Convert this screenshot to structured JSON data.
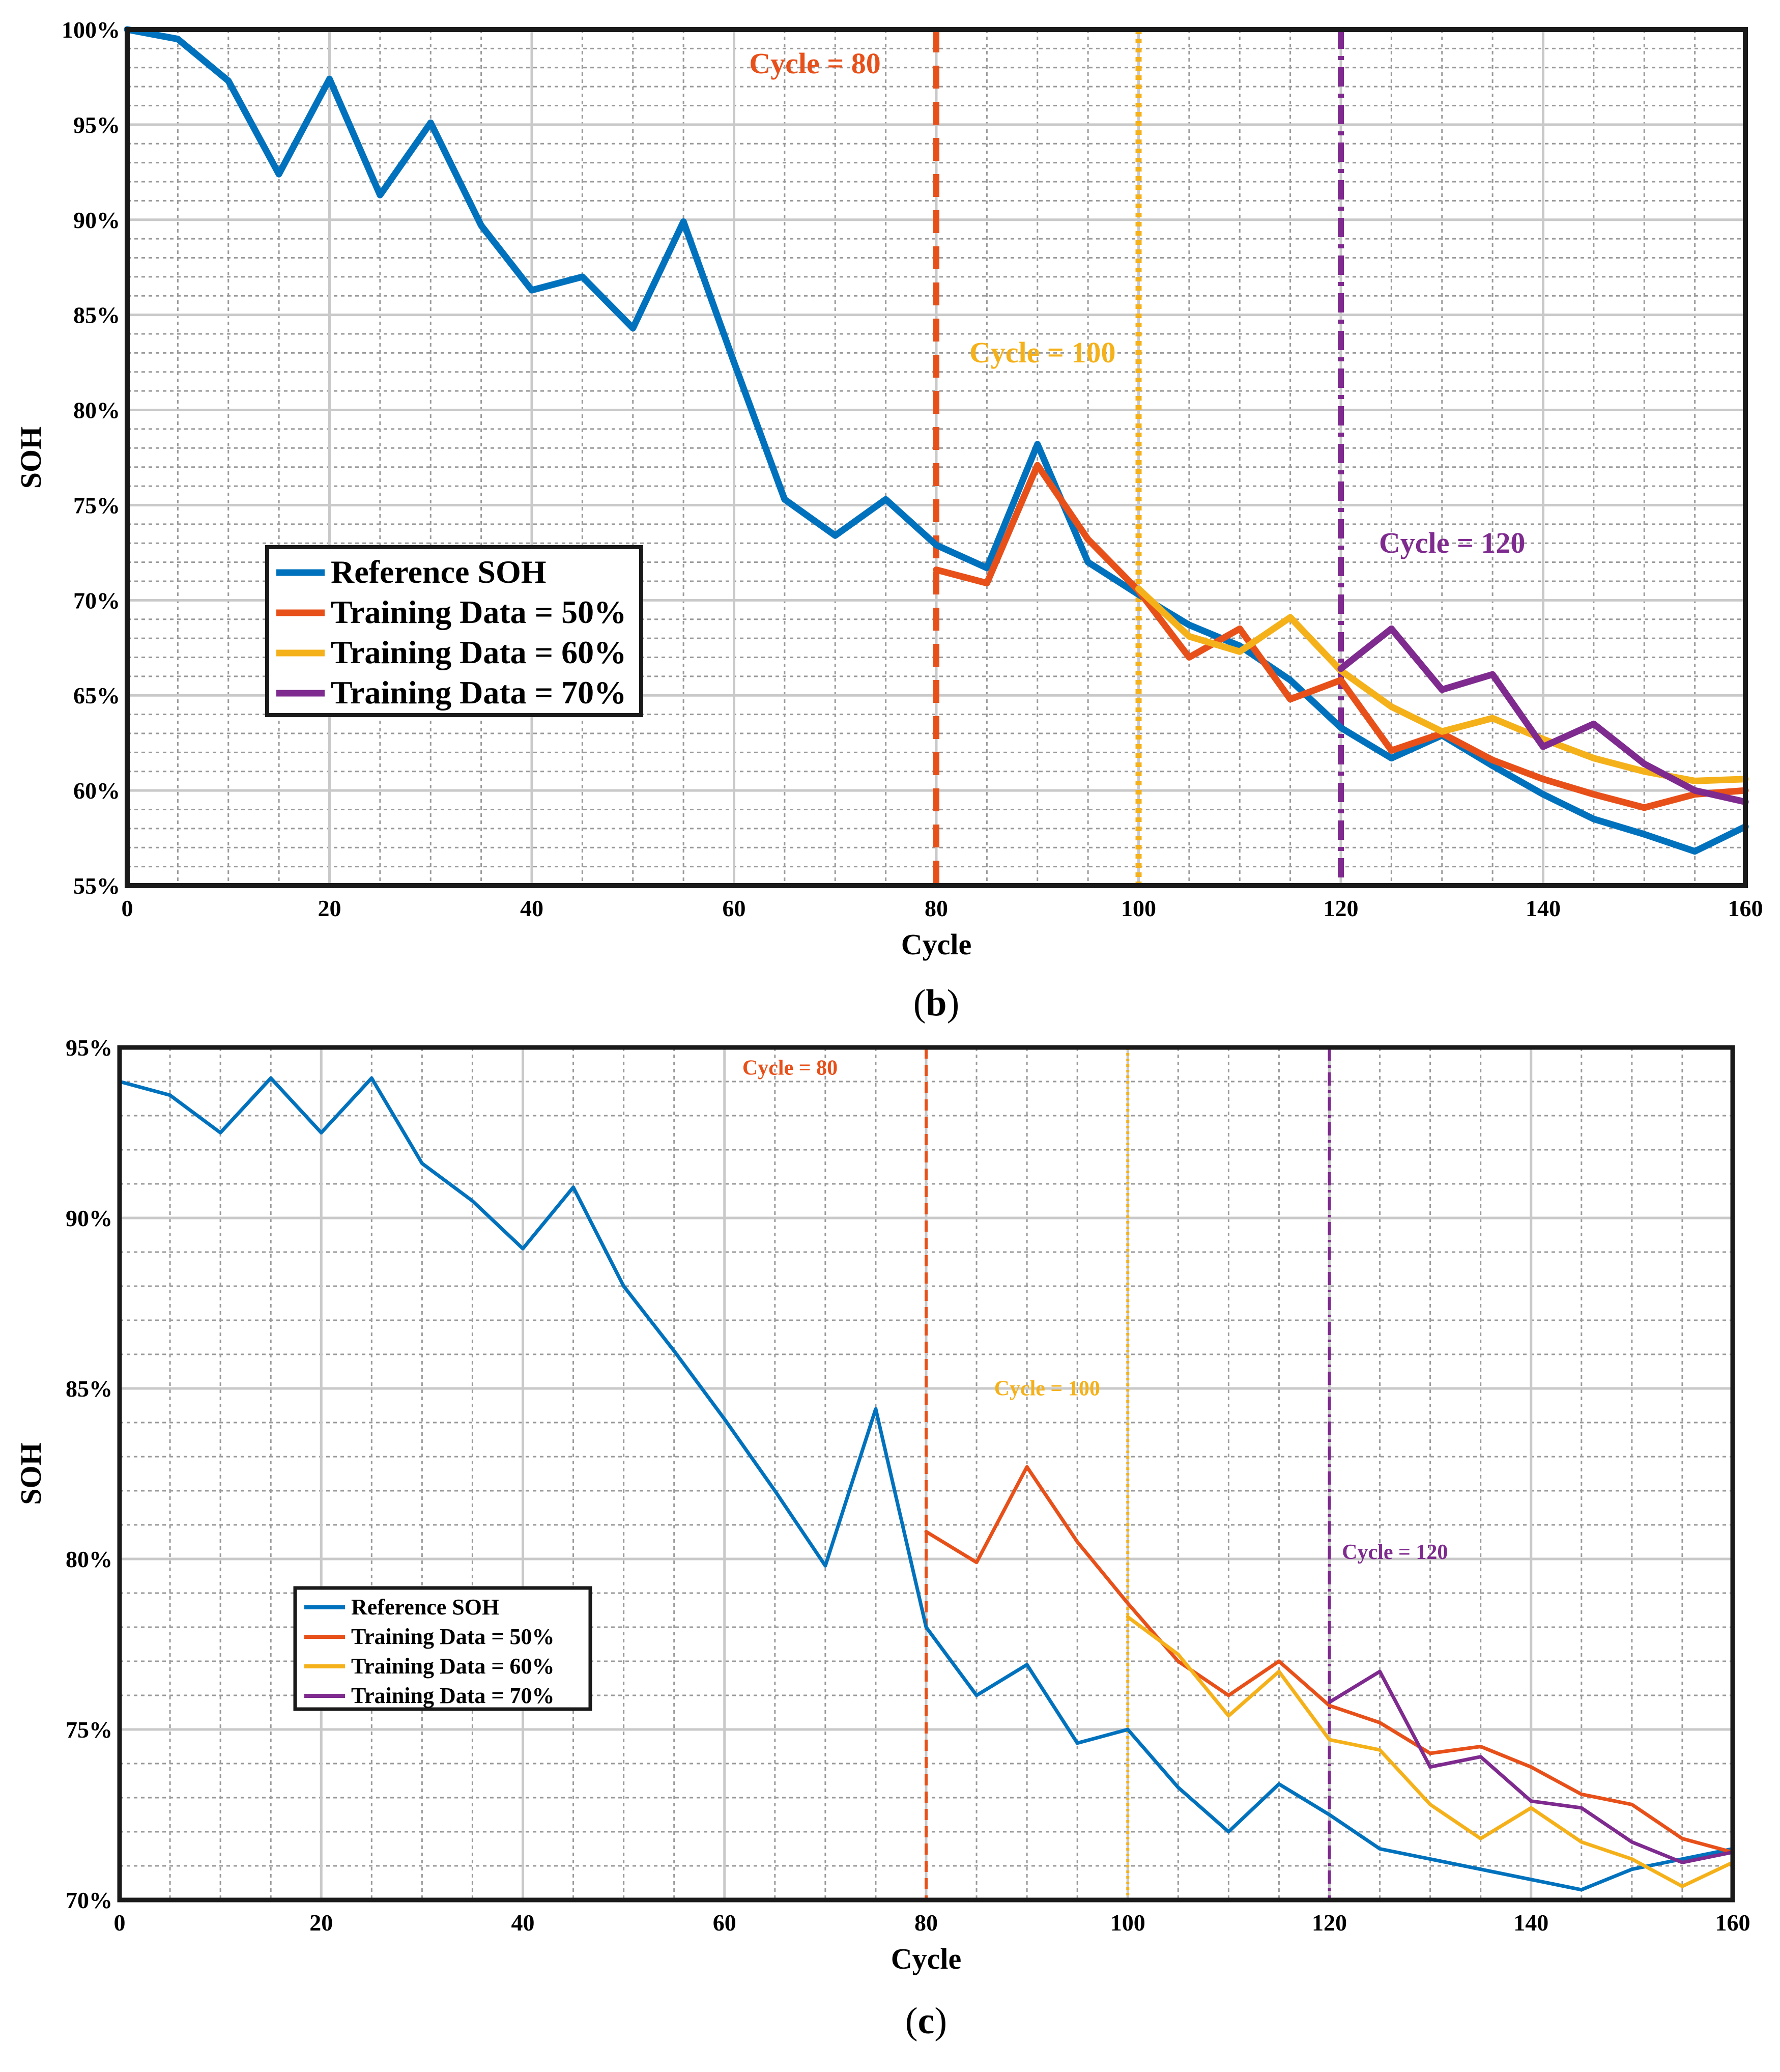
{
  "chart_data": [
    {
      "id": "b",
      "type": "line",
      "panel_label": "b",
      "xlabel": "Cycle",
      "ylabel": "SOH",
      "xlim": [
        0,
        160
      ],
      "ylim": [
        55,
        100
      ],
      "x_ticks": [
        0,
        20,
        40,
        60,
        80,
        100,
        120,
        140,
        160
      ],
      "y_ticks": [
        55,
        60,
        65,
        70,
        75,
        80,
        85,
        90,
        95,
        100
      ],
      "y_tick_labels": [
        "55%",
        "60%",
        "65%",
        "70%",
        "75%",
        "80%",
        "85%",
        "90%",
        "95%",
        "100%"
      ],
      "grid": true,
      "legend_position": "middle-left",
      "series": [
        {
          "name": "Reference SOH",
          "color": "#0072BD",
          "x": [
            0,
            5,
            10,
            15,
            20,
            25,
            30,
            35,
            40,
            45,
            50,
            55,
            60,
            65,
            70,
            75,
            80,
            85,
            90,
            95,
            100,
            105,
            110,
            115,
            120,
            125,
            130,
            135,
            140,
            145,
            150,
            155,
            160
          ],
          "y": [
            100,
            99.5,
            97.3,
            92.4,
            97.4,
            91.3,
            95.1,
            89.7,
            86.3,
            87,
            84.3,
            89.9,
            82.5,
            75.3,
            73.4,
            75.3,
            72.9,
            71.7,
            78.2,
            72,
            70.3,
            68.7,
            67.6,
            65.8,
            63.3,
            61.7,
            62.9,
            61.3,
            59.8,
            58.5,
            57.7,
            56.8,
            58.1
          ]
        },
        {
          "name": "Training Data = 50%",
          "color": "#E8501A",
          "x": [
            80,
            85,
            90,
            95,
            100,
            105,
            110,
            115,
            120,
            125,
            130,
            135,
            140,
            145,
            150,
            155,
            160
          ],
          "y": [
            71.6,
            70.9,
            77.1,
            73.2,
            70.5,
            67,
            68.5,
            64.8,
            65.8,
            62.1,
            63,
            61.6,
            60.6,
            59.8,
            59.1,
            59.8,
            60
          ]
        },
        {
          "name": "Training Data = 60%",
          "color": "#F5B11A",
          "x": [
            100,
            105,
            110,
            115,
            120,
            125,
            130,
            135,
            140,
            145,
            150,
            155,
            160
          ],
          "y": [
            70.6,
            68.1,
            67.3,
            69.1,
            66.3,
            64.4,
            63.1,
            63.8,
            62.7,
            61.7,
            61,
            60.5,
            60.6
          ]
        },
        {
          "name": "Training Data = 70%",
          "color": "#7E2A8E",
          "x": [
            120,
            125,
            130,
            135,
            140,
            145,
            150,
            155,
            160
          ],
          "y": [
            66.4,
            68.5,
            65.3,
            66.1,
            62.3,
            63.5,
            61.4,
            60,
            59.4
          ]
        }
      ],
      "vlines": [
        {
          "x": 80,
          "color": "#E8501A",
          "dash": "dashed",
          "label": "Cycle = 80",
          "label_x": 68,
          "label_y": 97.7
        },
        {
          "x": 100,
          "color": "#F5B11A",
          "dash": "dotted",
          "label": "Cycle = 100",
          "label_x": 90.5,
          "label_y": 82.5
        },
        {
          "x": 120,
          "color": "#7E2A8E",
          "dash": "dashdot",
          "label": "Cycle = 120",
          "label_x": 131,
          "label_y": 72.5
        }
      ]
    },
    {
      "id": "c",
      "type": "line",
      "panel_label": "c",
      "xlabel": "Cycle",
      "ylabel": "SOH",
      "xlim": [
        0,
        160
      ],
      "ylim": [
        70,
        95
      ],
      "x_ticks": [
        0,
        20,
        40,
        60,
        80,
        100,
        120,
        140,
        160
      ],
      "y_ticks": [
        70,
        75,
        80,
        85,
        90,
        95
      ],
      "y_tick_labels": [
        "70%",
        "75%",
        "80%",
        "85%",
        "90%",
        "95%"
      ],
      "grid": true,
      "legend_position": "middle-left",
      "series": [
        {
          "name": "Reference SOH",
          "color": "#0072BD",
          "x": [
            0,
            5,
            10,
            15,
            20,
            25,
            30,
            35,
            40,
            45,
            50,
            55,
            60,
            65,
            70,
            75,
            80,
            85,
            90,
            95,
            100,
            105,
            110,
            115,
            120,
            125,
            130,
            135,
            140,
            145,
            150,
            155,
            160
          ],
          "y": [
            94,
            93.6,
            92.5,
            94.1,
            92.5,
            94.1,
            91.6,
            90.5,
            89.1,
            90.9,
            88,
            86.1,
            84.1,
            82,
            79.8,
            84.4,
            78,
            76,
            76.9,
            74.6,
            75,
            73.3,
            72,
            73.4,
            72.5,
            71.5,
            71.2,
            70.9,
            70.6,
            70.3,
            70.9,
            71.2,
            71.5
          ]
        },
        {
          "name": "Training Data = 50%",
          "color": "#E8501A",
          "x": [
            80,
            85,
            90,
            95,
            100,
            105,
            110,
            115,
            120,
            125,
            130,
            135,
            140,
            145,
            150,
            155,
            160
          ],
          "y": [
            80.8,
            79.9,
            82.7,
            80.5,
            78.7,
            77,
            76,
            77,
            75.7,
            75.2,
            74.3,
            74.5,
            73.9,
            73.1,
            72.8,
            71.8,
            71.4
          ]
        },
        {
          "name": "Training Data = 60%",
          "color": "#F5B11A",
          "x": [
            100,
            105,
            110,
            115,
            120,
            125,
            130,
            135,
            140,
            145,
            150,
            155,
            160
          ],
          "y": [
            78.3,
            77.2,
            75.4,
            76.7,
            74.7,
            74.4,
            72.8,
            71.8,
            72.7,
            71.7,
            71.2,
            70.4,
            71.1
          ]
        },
        {
          "name": "Training Data = 70%",
          "color": "#7E2A8E",
          "x": [
            120,
            125,
            130,
            135,
            140,
            145,
            150,
            155,
            160
          ],
          "y": [
            75.8,
            76.7,
            73.9,
            74.2,
            72.9,
            72.7,
            71.7,
            71.1,
            71.4
          ]
        }
      ],
      "vlines": [
        {
          "x": 80,
          "color": "#E8501A",
          "dash": "dashed",
          "label": "Cycle = 80",
          "label_x": 66.5,
          "label_y": 94.2
        },
        {
          "x": 100,
          "color": "#F5B11A",
          "dash": "dotted",
          "label": "Cycle = 100",
          "label_x": 92,
          "label_y": 84.8
        },
        {
          "x": 120,
          "color": "#7E2A8E",
          "dash": "dashdot",
          "label": "Cycle = 120",
          "label_x": 126.5,
          "label_y": 80
        }
      ]
    }
  ]
}
